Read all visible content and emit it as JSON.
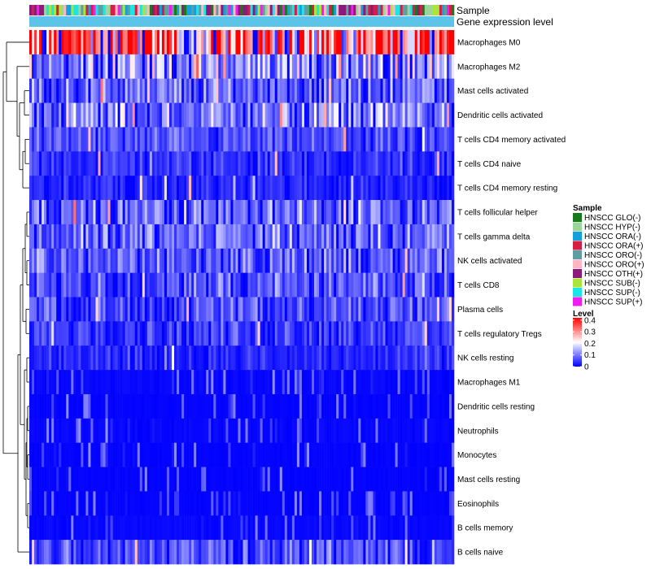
{
  "chart_data": {
    "type": "heatmap",
    "title": "",
    "annotations": [
      "Sample",
      "Gene expression level"
    ],
    "rows": [
      "Macrophages M0",
      "Macrophages M2",
      "Mast cells activated",
      "Dendritic cells activated",
      "T cells CD4 memory activated",
      "T cells CD4 naive",
      "T cells CD4 memory resting",
      "T cells follicular helper",
      "T cells gamma delta",
      "NK cells activated",
      "T cells CD8",
      "Plasma cells",
      "T cells regulatory  Tregs",
      "NK cells resting",
      "Macrophages M1",
      "Dendritic cells resting",
      "Neutrophils",
      "Monocytes",
      "Mast cells resting",
      "Eosinophils",
      "B cells memory",
      "B cells naive"
    ],
    "row_mean_levels": [
      0.3,
      0.12,
      0.08,
      0.1,
      0.05,
      0.04,
      0.03,
      0.08,
      0.08,
      0.07,
      0.06,
      0.06,
      0.05,
      0.03,
      0.01,
      0.005,
      0.01,
      0.005,
      0.005,
      0.005,
      0.01,
      0.06
    ],
    "n_samples": 173,
    "sample_legend": {
      "title": "Sample",
      "items": [
        {
          "label": "HNSCC GLO(-)",
          "color": "#1a7a1a"
        },
        {
          "label": "HNSCC HYP(-)",
          "color": "#9cd59c"
        },
        {
          "label": "HNSCC ORA(-)",
          "color": "#14a0d8"
        },
        {
          "label": "HNSCC ORA(+)",
          "color": "#d41f45"
        },
        {
          "label": "HNSCC ORO(-)",
          "color": "#5f9ea0"
        },
        {
          "label": "HNSCC ORO(+)",
          "color": "#ffb6c1"
        },
        {
          "label": "HNSCC OTH(+)",
          "color": "#8b1a7a"
        },
        {
          "label": "HNSCC SUB(-)",
          "color": "#a8e63c"
        },
        {
          "label": "HNSCC SUP(-)",
          "color": "#19e6e6"
        },
        {
          "label": "HNSCC SUP(+)",
          "color": "#ee1fee"
        }
      ]
    },
    "level_legend": {
      "title": "Level",
      "ticks": [
        "0.4",
        "0.3",
        "0.2",
        "0.1",
        "0"
      ],
      "tick_values": [
        0.4,
        0.3,
        0.2,
        0.1,
        0
      ],
      "range": [
        0,
        0.42
      ],
      "colors": [
        "#0000ff",
        "#ffffff",
        "#ff0000"
      ]
    },
    "expression_bar_color": "#5bc4e8"
  }
}
